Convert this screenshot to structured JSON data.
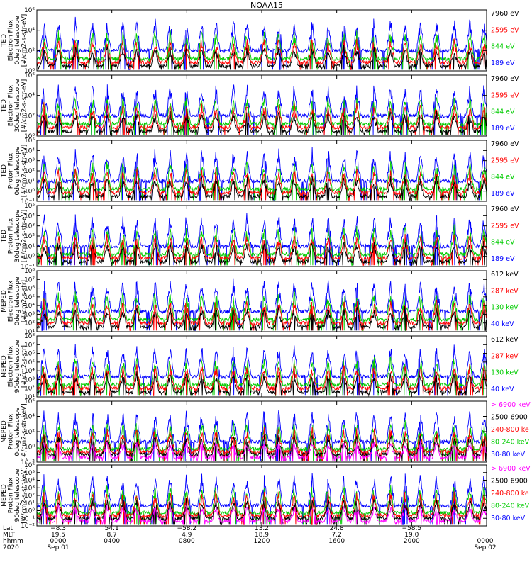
{
  "chart_data": [
    {
      "type": "line",
      "title": "NOAA15",
      "ylabel": [
        "TED",
        "Electron Flux",
        "0deg telescope",
        "[#/cm2-s-str-eV]"
      ],
      "yscale": "log",
      "ylim_exp": [
        0,
        6
      ],
      "y_tick_labels": [
        "10⁰",
        "10²",
        "10⁴",
        "10⁶"
      ],
      "legend": [
        {
          "label": "7960 eV",
          "color": "#000000"
        },
        {
          "label": "2595 eV",
          "color": "#ff0000"
        },
        {
          "label": "844 eV",
          "color": "#00cc00"
        },
        {
          "label": "189 eV",
          "color": "#0000ff"
        }
      ]
    },
    {
      "type": "line",
      "ylabel": [
        "TED",
        "Electron Flux",
        "30deg telescope",
        "[#/cm2-s-str-eV]"
      ],
      "yscale": "log",
      "ylim_exp": [
        0,
        6
      ],
      "y_tick_labels": [
        "10⁰",
        "10²",
        "10⁴",
        "10⁶"
      ],
      "legend": [
        {
          "label": "7960 eV",
          "color": "#000000"
        },
        {
          "label": "2595 eV",
          "color": "#ff0000"
        },
        {
          "label": "844 eV",
          "color": "#00cc00"
        },
        {
          "label": "189 eV",
          "color": "#0000ff"
        }
      ]
    },
    {
      "type": "line",
      "ylabel": [
        "TED",
        "Proton Flux",
        "0deg telescope",
        "[#/cm2-s-str-eV]"
      ],
      "yscale": "log",
      "ylim_exp": [
        -1,
        5
      ],
      "y_tick_labels": [
        "10⁻¹",
        "10⁰",
        "10¹",
        "10²",
        "10³",
        "10⁴",
        "10⁵"
      ],
      "legend": [
        {
          "label": "7960 eV",
          "color": "#000000"
        },
        {
          "label": "2595 eV",
          "color": "#ff0000"
        },
        {
          "label": "844 eV",
          "color": "#00cc00"
        },
        {
          "label": "189 eV",
          "color": "#0000ff"
        }
      ]
    },
    {
      "type": "line",
      "ylabel": [
        "TED",
        "Proton Flux",
        "30deg telescope",
        "[#/cm2-s-str-eV]"
      ],
      "yscale": "log",
      "ylim_exp": [
        -1,
        5
      ],
      "y_tick_labels": [
        "10⁻¹",
        "10⁰",
        "10¹",
        "10²",
        "10³",
        "10⁴",
        "10⁵"
      ],
      "legend": [
        {
          "label": "7960 eV",
          "color": "#000000"
        },
        {
          "label": "2595 eV",
          "color": "#ff0000"
        },
        {
          "label": "844 eV",
          "color": "#00cc00"
        },
        {
          "label": "189 eV",
          "color": "#0000ff"
        }
      ]
    },
    {
      "type": "line",
      "ylabel": [
        "MEPED",
        "Electron Flux",
        "0deg telescope",
        "[#/cm2-s-str]"
      ],
      "yscale": "log",
      "ylim_exp": [
        1,
        8
      ],
      "y_tick_labels": [
        "10¹",
        "10²",
        "10³",
        "10⁴",
        "10⁵",
        "10⁶",
        "10⁷",
        "10⁸"
      ],
      "legend": [
        {
          "label": "612 keV",
          "color": "#000000"
        },
        {
          "label": "287 keV",
          "color": "#ff0000"
        },
        {
          "label": "130 keV",
          "color": "#00cc00"
        },
        {
          "label": "40 keV",
          "color": "#0000ff"
        }
      ]
    },
    {
      "type": "line",
      "ylabel": [
        "MEPED",
        "Electron Flux",
        "90deg telescope",
        "[#/cm2-s-str]"
      ],
      "yscale": "log",
      "ylim_exp": [
        1,
        8
      ],
      "y_tick_labels": [
        "10¹",
        "10²",
        "10³",
        "10⁴",
        "10⁵",
        "10⁶",
        "10⁷",
        "10⁸"
      ],
      "legend": [
        {
          "label": "612 keV",
          "color": "#000000"
        },
        {
          "label": "287 keV",
          "color": "#ff0000"
        },
        {
          "label": "130 keV",
          "color": "#00cc00"
        },
        {
          "label": "40 keV",
          "color": "#0000ff"
        }
      ]
    },
    {
      "type": "line",
      "ylabel": [
        "MEPED",
        "Proton Flux",
        "0deg telescope",
        "[#/cm2-s-str-keV]"
      ],
      "yscale": "log",
      "ylim_exp": [
        -2,
        6
      ],
      "y_tick_labels": [
        "10⁻²",
        "10⁰",
        "10²",
        "10⁴",
        "10⁶"
      ],
      "legend": [
        {
          "label": "> 6900 keV",
          "color": "#ff00ff"
        },
        {
          "label": "2500-6900",
          "color": "#000000"
        },
        {
          "label": "240-800 ke",
          "color": "#ff0000"
        },
        {
          "label": "80-240 keV",
          "color": "#00cc00"
        },
        {
          "label": "30-80 keV",
          "color": "#0000ff"
        }
      ]
    },
    {
      "type": "line",
      "ylabel": [
        "MEPED",
        "Proton Flux",
        "90deg telescope",
        "[#/cm2-s-str-keV]"
      ],
      "yscale": "log",
      "ylim_exp": [
        -2,
        6
      ],
      "y_tick_labels": [
        "10⁻²",
        "10⁻¹",
        "10⁰",
        "10¹",
        "10²",
        "10³",
        "10⁴",
        "10⁵",
        "10⁶"
      ],
      "legend": [
        {
          "label": "> 6900 keV",
          "color": "#ff00ff"
        },
        {
          "label": "2500-6900",
          "color": "#000000"
        },
        {
          "label": "240-800 ke",
          "color": "#ff0000"
        },
        {
          "label": "80-240 keV",
          "color": "#00cc00"
        },
        {
          "label": "30-80 keV",
          "color": "#0000ff"
        }
      ]
    }
  ],
  "x_axis": {
    "row_labels": [
      "Lat",
      "MLT",
      "hhmm",
      "2020"
    ],
    "hours": [
      0,
      4,
      8,
      12,
      16,
      20,
      24
    ],
    "ticks": [
      {
        "lat": "−8.3",
        "mlt": "19.5",
        "hhmm": "0000",
        "date": "Sep 01"
      },
      {
        "lat": "54.1",
        "mlt": "8.7",
        "hhmm": "0400",
        "date": ""
      },
      {
        "lat": "−58.2",
        "mlt": "4.9",
        "hhmm": "0800",
        "date": ""
      },
      {
        "lat": "13.2",
        "mlt": "18.9",
        "hhmm": "1200",
        "date": ""
      },
      {
        "lat": "24.8",
        "mlt": "7.2",
        "hhmm": "1600",
        "date": ""
      },
      {
        "lat": "−58.5",
        "mlt": "19.0",
        "hhmm": "2000",
        "date": ""
      },
      {
        "lat": "",
        "mlt": "",
        "hhmm": "0000",
        "date": "Sep 02"
      }
    ]
  }
}
